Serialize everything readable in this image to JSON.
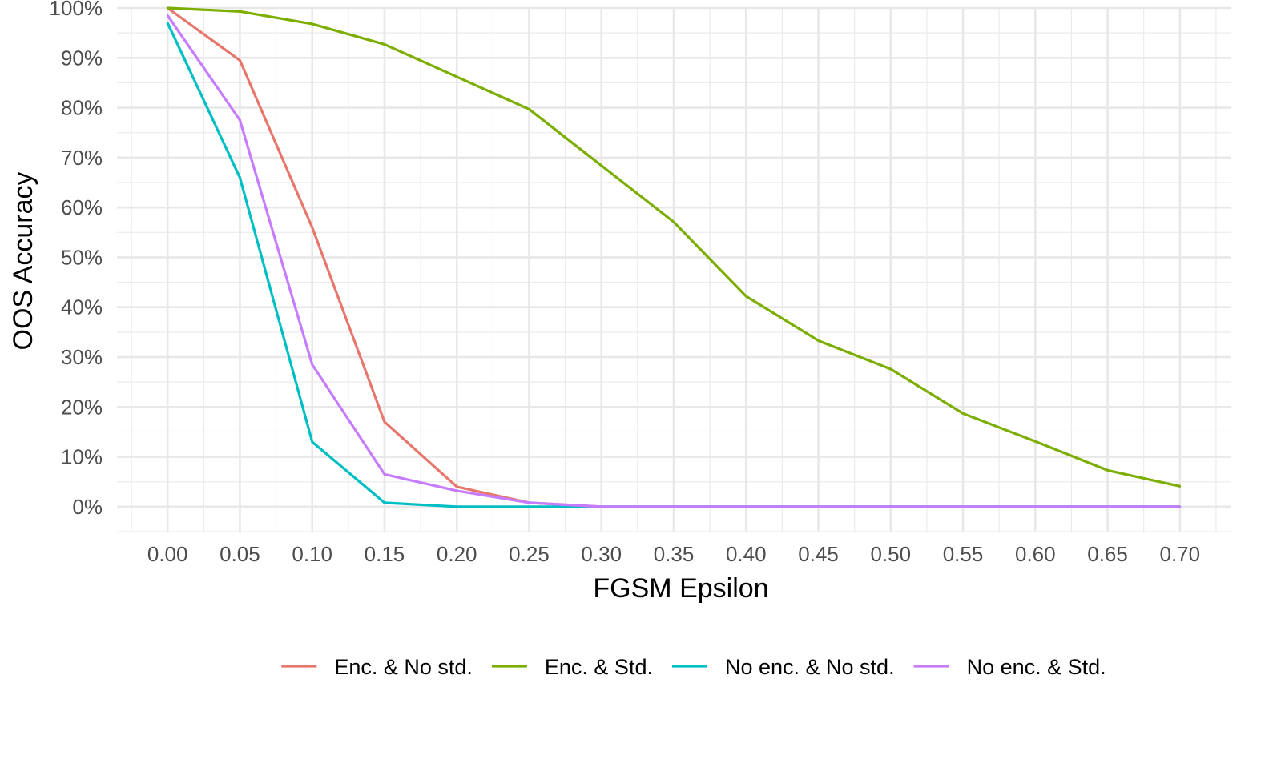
{
  "chart_data": {
    "type": "line",
    "title": "",
    "xlabel": "FGSM Epsilon",
    "ylabel": "OOS Accuracy",
    "xlim": [
      -0.035,
      0.735
    ],
    "ylim": [
      -0.05,
      1.0
    ],
    "x": [
      0.0,
      0.05,
      0.1,
      0.15,
      0.2,
      0.25,
      0.3,
      0.35,
      0.4,
      0.45,
      0.5,
      0.55,
      0.6,
      0.65,
      0.7
    ],
    "x_tick_labels": [
      "0.00",
      "0.05",
      "0.10",
      "0.15",
      "0.20",
      "0.25",
      "0.30",
      "0.35",
      "0.40",
      "0.45",
      "0.50",
      "0.55",
      "0.60",
      "0.65",
      "0.70"
    ],
    "y_ticks": [
      0,
      0.1,
      0.2,
      0.3,
      0.4,
      0.5,
      0.6,
      0.7,
      0.8,
      0.9,
      1.0
    ],
    "y_tick_labels": [
      "0%",
      "10%",
      "20%",
      "30%",
      "40%",
      "50%",
      "60%",
      "70%",
      "80%",
      "90%",
      "100%"
    ],
    "grid": true,
    "legend_position": "bottom",
    "series": [
      {
        "name": "Enc. & No std.",
        "color": "#E7766C",
        "values": [
          1.0,
          0.895,
          0.56,
          0.17,
          0.04,
          0.008,
          0.0,
          0.0,
          0.0,
          0.0,
          0.0,
          0.0,
          0.0,
          0.0,
          0.0
        ]
      },
      {
        "name": "Enc. & Std.",
        "color": "#7CAE00",
        "values": [
          1.0,
          0.993,
          0.968,
          0.927,
          0.862,
          0.797,
          0.684,
          0.571,
          0.422,
          0.333,
          0.276,
          0.187,
          0.131,
          0.073,
          0.041
        ]
      },
      {
        "name": "No enc. & No std.",
        "color": "#00BFC4",
        "values": [
          0.97,
          0.66,
          0.13,
          0.008,
          0.0,
          0.0,
          0.0,
          0.0,
          0.0,
          0.0,
          0.0,
          0.0,
          0.0,
          0.0,
          0.0
        ]
      },
      {
        "name": "No enc. & Std.",
        "color": "#C77CFF",
        "values": [
          0.985,
          0.775,
          0.285,
          0.065,
          0.032,
          0.008,
          0.0,
          0.0,
          0.0,
          0.0,
          0.0,
          0.0,
          0.0,
          0.0,
          0.0
        ]
      }
    ]
  }
}
